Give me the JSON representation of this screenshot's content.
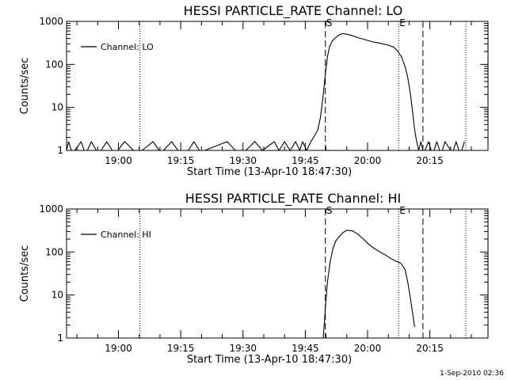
{
  "timestamp": "1-Sep-2010 02:36",
  "chart_data": [
    {
      "type": "line",
      "title": "HESSI PARTICLE_RATE Channel: LO",
      "xlabel": "Start Time (13-Apr-10 18:47:30)",
      "ylabel": "Counts/sec",
      "yscale": "log",
      "ylim": [
        1,
        1000
      ],
      "yticks": [
        1,
        10,
        100,
        1000
      ],
      "ytick_labels": [
        "1",
        "10",
        "100",
        "1000"
      ],
      "xlim": [
        "18:47:30",
        "20:29:00"
      ],
      "xticks": [
        "19:00",
        "19:15",
        "19:30",
        "19:45",
        "20:00",
        "20:15"
      ],
      "legend": "top-left",
      "series": [
        {
          "name": "Channel: LO",
          "x": [
            "18:47:30",
            "18:48:00",
            "18:48:40",
            "18:49:30",
            "18:51:00",
            "18:51:45",
            "18:52:30",
            "18:53:30",
            "18:54:40",
            "18:55:50",
            "18:57:10",
            "18:58:30",
            "18:59:50",
            "19:01:30",
            "19:03:40",
            "19:05:40",
            "19:08:20",
            "19:09:50",
            "19:10:50",
            "19:12:50",
            "19:14:20",
            "19:16:50",
            "19:18:10",
            "19:19:30",
            "19:20:50",
            "19:26:10",
            "19:28:10",
            "19:30:40",
            "19:32:50",
            "19:34:40",
            "19:37:30",
            "19:38:40",
            "19:40:00",
            "19:41:20",
            "19:42:40",
            "19:43:40",
            "19:44:20",
            "19:45:20",
            "19:46:20",
            "19:47:00",
            "19:48:00",
            "19:48:40",
            "19:49:20",
            "19:49:50",
            "19:50:20",
            "19:50:50",
            "19:51:30",
            "19:52:20",
            "19:53:10",
            "19:54:10",
            "19:55:10",
            "19:56:10",
            "19:57:20",
            "19:58:20",
            "19:59:40",
            "20:01:00",
            "20:02:20",
            "20:03:40",
            "20:05:00",
            "20:06:20",
            "20:07:20",
            "20:08:10",
            "20:09:00",
            "20:09:40",
            "20:10:20",
            "20:10:50",
            "20:11:20",
            "20:11:50",
            "20:12:20",
            "20:12:50",
            "20:13:20",
            "20:13:50",
            "20:14:40",
            "20:15:20",
            "20:16:00",
            "20:16:40",
            "20:17:20",
            "20:18:00",
            "20:18:40",
            "20:20:00",
            "20:20:40",
            "20:21:20",
            "20:22:00",
            "20:22:40",
            "20:23:20"
          ],
          "y": [
            1,
            1.6,
            1,
            1,
            1.6,
            1,
            1,
            1.6,
            1,
            1,
            1.6,
            1,
            1,
            1.6,
            1,
            1,
            1.6,
            1,
            1,
            1.6,
            1,
            1,
            1.6,
            1,
            1,
            1.6,
            1,
            1,
            1.6,
            1,
            1.6,
            1,
            1.6,
            1,
            1.6,
            1,
            1.6,
            1,
            1.6,
            2,
            3,
            6,
            20,
            60,
            150,
            260,
            350,
            420,
            490,
            520,
            500,
            470,
            430,
            400,
            370,
            340,
            320,
            300,
            280,
            250,
            200,
            150,
            90,
            50,
            20,
            8,
            3,
            1.6,
            1,
            1.6,
            1,
            1,
            1.6,
            1,
            1,
            1.6,
            1,
            1,
            1.6,
            1,
            1,
            1.6,
            1,
            1,
            1.6
          ]
        }
      ],
      "annotations": [
        {
          "text": "S",
          "x": "19:49:50"
        },
        {
          "text": "E",
          "x": "20:07:30"
        }
      ],
      "vlines": [
        {
          "x": "19:05:10",
          "style": "dotted"
        },
        {
          "x": "19:49:50",
          "style": "dashed"
        },
        {
          "x": "20:07:30",
          "style": "dotted"
        },
        {
          "x": "20:13:20",
          "style": "dashed"
        },
        {
          "x": "20:23:40",
          "style": "dotted"
        }
      ]
    },
    {
      "type": "line",
      "title": "HESSI PARTICLE_RATE Channel: HI",
      "xlabel": "Start Time (13-Apr-10 18:47:30)",
      "ylabel": "Counts/sec",
      "yscale": "log",
      "ylim": [
        1,
        1000
      ],
      "yticks": [
        1,
        10,
        100,
        1000
      ],
      "ytick_labels": [
        "1",
        "10",
        "100",
        "1000"
      ],
      "xlim": [
        "18:47:30",
        "20:29:00"
      ],
      "xticks": [
        "19:00",
        "19:15",
        "19:30",
        "19:45",
        "20:00",
        "20:15"
      ],
      "legend": "top-left",
      "series": [
        {
          "name": "Channel: HI",
          "x": [
            "19:49:20",
            "19:49:50",
            "19:50:20",
            "19:51:00",
            "19:51:40",
            "19:52:20",
            "19:53:10",
            "19:54:00",
            "19:55:00",
            "19:56:20",
            "19:57:40",
            "19:59:00",
            "20:00:20",
            "20:01:40",
            "20:03:00",
            "20:04:20",
            "20:05:40",
            "20:07:00",
            "20:08:00",
            "20:09:00",
            "20:09:40",
            "20:10:20",
            "20:11:00",
            "20:11:20"
          ],
          "y": [
            1,
            5,
            20,
            60,
            120,
            180,
            230,
            280,
            320,
            310,
            260,
            200,
            150,
            120,
            100,
            85,
            70,
            60,
            55,
            40,
            20,
            8,
            3,
            1.8
          ]
        }
      ],
      "annotations": [
        {
          "text": "S",
          "x": "19:49:50"
        },
        {
          "text": "E",
          "x": "20:07:30"
        }
      ],
      "vlines": [
        {
          "x": "19:05:10",
          "style": "dotted"
        },
        {
          "x": "19:49:50",
          "style": "dashed"
        },
        {
          "x": "20:07:30",
          "style": "dotted"
        },
        {
          "x": "20:13:20",
          "style": "dashed"
        },
        {
          "x": "20:23:40",
          "style": "dotted"
        }
      ]
    }
  ]
}
